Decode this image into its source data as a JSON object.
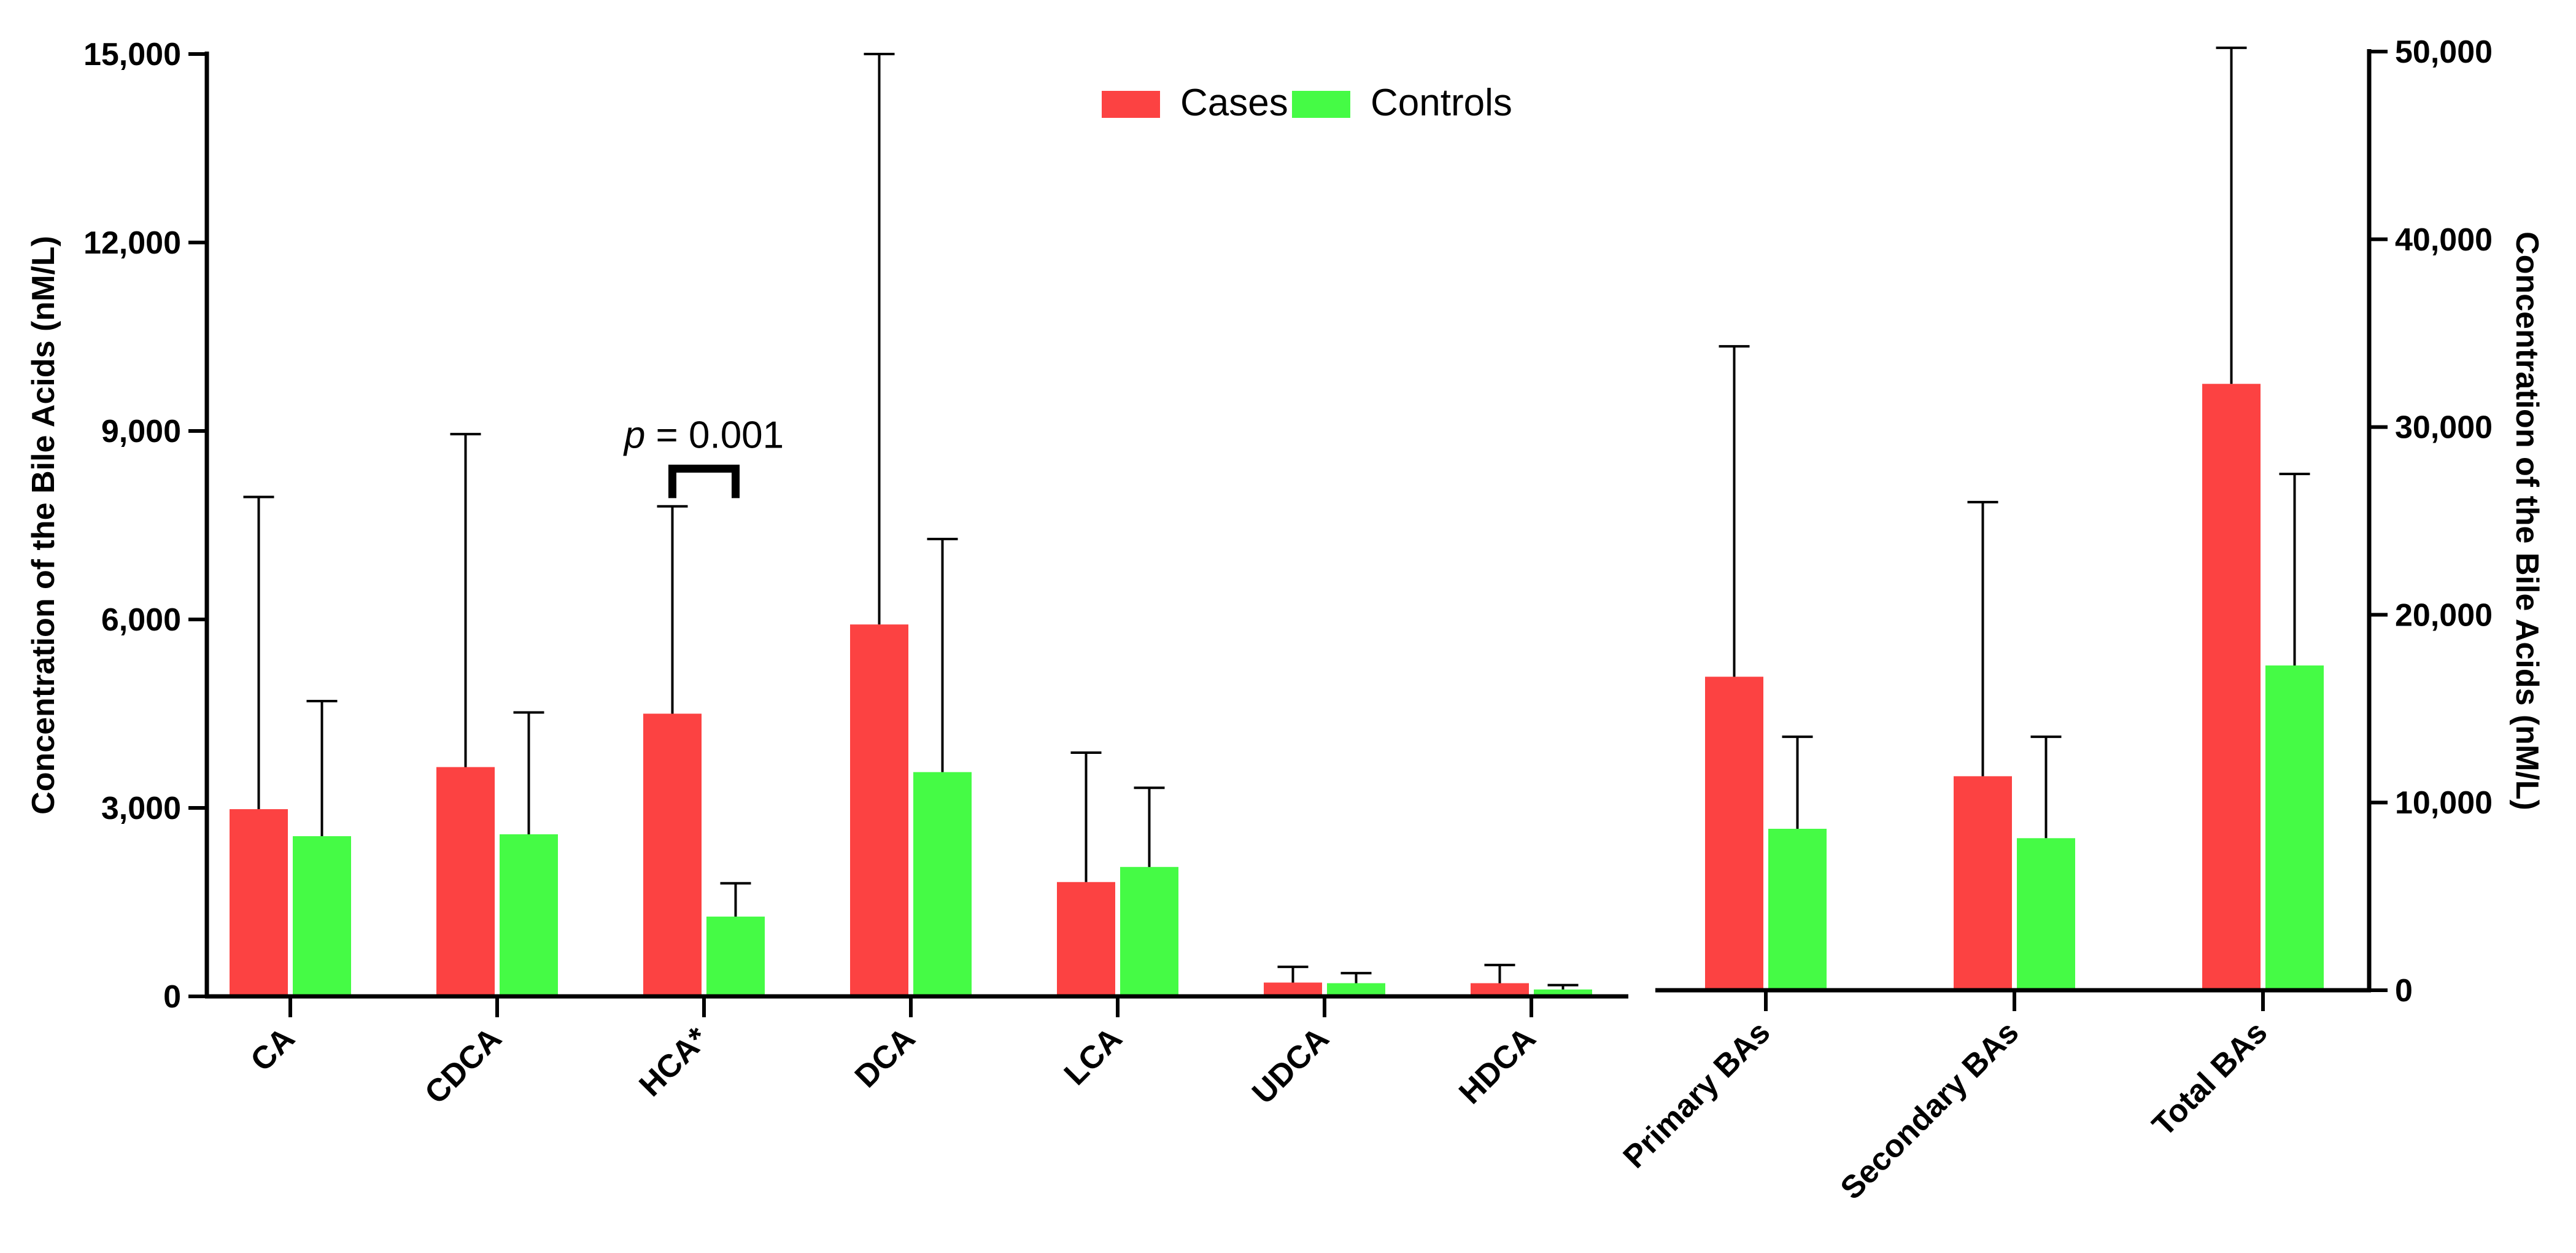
{
  "chart_data": [
    {
      "type": "bar",
      "panel": "left",
      "categories": [
        "CA",
        "CDCA",
        "HCA*",
        "DCA",
        "LCA",
        "UDCA",
        "HDCA"
      ],
      "series": [
        {
          "name": "Cases",
          "color": "#fc4242",
          "values": [
            2980,
            3650,
            4500,
            5920,
            1820,
            220,
            210
          ],
          "error_upper": [
            7950,
            8950,
            7800,
            15000,
            3880,
            470,
            500
          ]
        },
        {
          "name": "Controls",
          "color": "#45fb45",
          "values": [
            2550,
            2580,
            1270,
            3570,
            2060,
            210,
            110
          ],
          "error_upper": [
            4700,
            4520,
            1800,
            7280,
            3320,
            370,
            180
          ]
        }
      ],
      "ylabel": "Concentration of the Bile Acids (nM/L)",
      "ylim": [
        0,
        15000
      ],
      "yticks": [
        0,
        3000,
        6000,
        9000,
        12000,
        15000
      ],
      "ytick_labels": [
        "0",
        "3,000",
        "6,000",
        "9,000",
        "12,000",
        "15,000"
      ],
      "grid": false
    },
    {
      "type": "bar",
      "panel": "right",
      "categories": [
        "Primary BAs",
        "Secondary BAs",
        "Total BAs"
      ],
      "series": [
        {
          "name": "Cases",
          "color": "#fc4242",
          "values": [
            16700,
            11400,
            32300
          ],
          "error_upper": [
            34300,
            26000,
            50200
          ]
        },
        {
          "name": "Controls",
          "color": "#45fb45",
          "values": [
            8600,
            8100,
            17300
          ],
          "error_upper": [
            13500,
            13500,
            27500
          ]
        }
      ],
      "ylabel": "Concentration of the Bile Acids (nM/L)",
      "ylim": [
        0,
        50000
      ],
      "yticks": [
        0,
        10000,
        20000,
        30000,
        40000,
        50000
      ],
      "ytick_labels": [
        "0",
        "10,000",
        "20,000",
        "30,000",
        "40,000",
        "50,000"
      ],
      "grid": false
    }
  ],
  "legend": {
    "position": "top-center",
    "items": [
      {
        "label": "Cases",
        "color": "#fc4242"
      },
      {
        "label": "Controls",
        "color": "#45fb45"
      }
    ]
  },
  "annotation": {
    "category": "HCA*",
    "p_symbol": "p",
    "p_rest": " = 0.001",
    "bracket_value": 8400
  }
}
